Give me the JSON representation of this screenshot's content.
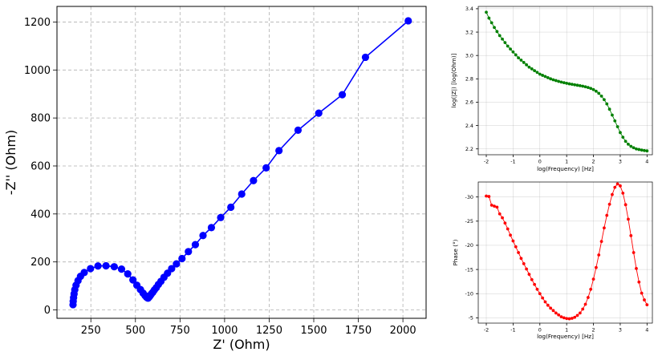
{
  "chart_data": [
    {
      "type": "line",
      "xlabel": "Z' (Ohm)",
      "ylabel": "-Z'' (Ohm)",
      "xlim": [
        60,
        2130
      ],
      "ylim": [
        -35,
        1265
      ],
      "xticks": [
        250,
        500,
        750,
        1000,
        1250,
        1500,
        1750,
        2000
      ],
      "yticks": [
        0,
        200,
        400,
        600,
        800,
        1000,
        1200
      ],
      "grid": true,
      "marker": "circle",
      "series": [
        {
          "color": "#0000ff",
          "x": [
            2030,
            1790,
            1660,
            1528,
            1412,
            1305,
            1233,
            1162,
            1096,
            1035,
            978,
            926,
            879,
            836,
            797,
            761,
            730,
            703,
            680,
            660,
            643,
            629,
            617,
            606,
            597,
            589,
            583,
            578,
            574,
            571,
            568,
            562,
            554,
            543,
            528,
            508,
            486,
            457,
            422,
            381,
            335,
            290,
            248,
            213,
            192,
            178,
            167,
            160,
            156,
            153,
            151,
            150
          ],
          "y": [
            1205,
            1053,
            897,
            820,
            749,
            664,
            592,
            539,
            483,
            428,
            385,
            343,
            310,
            272,
            243,
            214,
            192,
            172,
            153,
            136,
            119,
            106,
            93,
            83,
            73,
            66,
            60,
            55,
            52,
            49,
            50,
            53,
            60,
            70,
            85,
            103,
            125,
            150,
            170,
            180,
            184,
            183,
            172,
            156,
            140,
            122,
            103,
            84,
            67,
            51,
            36,
            22
          ]
        }
      ]
    },
    {
      "type": "line",
      "xlabel": "log(Frequency) [Hz]",
      "ylabel": "log(|Z|) [log(Ohm)]",
      "xlim": [
        -2.3,
        4.2
      ],
      "ylim": [
        2.15,
        3.42
      ],
      "xticks": [
        -2,
        -1,
        0,
        1,
        2,
        3,
        4
      ],
      "yticks": [
        2.2,
        2.4,
        2.6,
        2.8,
        3.0,
        3.2,
        3.4
      ],
      "grid": true,
      "marker": "circle",
      "series": [
        {
          "color": "#008000",
          "x": [
            -2.0,
            -1.9,
            -1.8,
            -1.7,
            -1.6,
            -1.5,
            -1.4,
            -1.3,
            -1.2,
            -1.1,
            -1.0,
            -0.9,
            -0.8,
            -0.7,
            -0.6,
            -0.5,
            -0.4,
            -0.3,
            -0.2,
            -0.1,
            0.0,
            0.1,
            0.2,
            0.3,
            0.4,
            0.5,
            0.6,
            0.7,
            0.8,
            0.9,
            1.0,
            1.1,
            1.2,
            1.3,
            1.4,
            1.5,
            1.6,
            1.7,
            1.8,
            1.9,
            2.0,
            2.1,
            2.2,
            2.3,
            2.4,
            2.5,
            2.6,
            2.7,
            2.8,
            2.9,
            3.0,
            3.1,
            3.2,
            3.3,
            3.4,
            3.5,
            3.6,
            3.7,
            3.8,
            3.9,
            4.0
          ],
          "y": [
            3.37,
            3.32,
            3.28,
            3.24,
            3.205,
            3.17,
            3.14,
            3.11,
            3.08,
            3.055,
            3.03,
            3.005,
            2.98,
            2.96,
            2.94,
            2.92,
            2.9,
            2.885,
            2.87,
            2.855,
            2.84,
            2.83,
            2.82,
            2.81,
            2.8,
            2.792,
            2.785,
            2.778,
            2.772,
            2.767,
            2.762,
            2.757,
            2.753,
            2.749,
            2.745,
            2.741,
            2.737,
            2.732,
            2.726,
            2.718,
            2.708,
            2.694,
            2.676,
            2.652,
            2.622,
            2.585,
            2.54,
            2.49,
            2.44,
            2.39,
            2.34,
            2.3,
            2.265,
            2.24,
            2.222,
            2.21,
            2.2,
            2.195,
            2.19,
            2.186,
            2.183
          ]
        }
      ]
    },
    {
      "type": "line",
      "xlabel": "log(Frequency) [Hz]",
      "ylabel": "Phase (°)",
      "xlim": [
        -2.3,
        4.2
      ],
      "ylim": [
        -3.9,
        -33.1
      ],
      "xticks": [
        -2,
        -1,
        0,
        1,
        2,
        3,
        4
      ],
      "yticks": [
        -5,
        -10,
        -15,
        -20,
        -25,
        -30
      ],
      "grid": true,
      "marker": "circle",
      "series": [
        {
          "color": "#ff0000",
          "x": [
            -2.0,
            -1.9,
            -1.8,
            -1.7,
            -1.6,
            -1.5,
            -1.4,
            -1.3,
            -1.2,
            -1.1,
            -1.0,
            -0.9,
            -0.8,
            -0.7,
            -0.6,
            -0.5,
            -0.4,
            -0.3,
            -0.2,
            -0.1,
            0.0,
            0.1,
            0.2,
            0.3,
            0.4,
            0.5,
            0.6,
            0.7,
            0.8,
            0.9,
            1.0,
            1.1,
            1.2,
            1.3,
            1.4,
            1.5,
            1.6,
            1.7,
            1.8,
            1.9,
            2.0,
            2.1,
            2.2,
            2.3,
            2.4,
            2.5,
            2.6,
            2.7,
            2.8,
            2.9,
            3.0,
            3.1,
            3.2,
            3.3,
            3.4,
            3.5,
            3.6,
            3.7,
            3.8,
            3.9,
            4.0
          ],
          "y": [
            -30.2,
            -30.1,
            -28.3,
            -28.1,
            -27.9,
            -26.5,
            -25.7,
            -24.6,
            -23.4,
            -22.1,
            -20.9,
            -19.7,
            -18.5,
            -17.3,
            -16.2,
            -15.1,
            -14.0,
            -12.9,
            -11.9,
            -10.9,
            -10.0,
            -9.1,
            -8.3,
            -7.6,
            -7.0,
            -6.5,
            -6.0,
            -5.6,
            -5.2,
            -5.0,
            -4.85,
            -4.8,
            -4.9,
            -5.1,
            -5.5,
            -6.0,
            -6.8,
            -7.8,
            -9.2,
            -10.9,
            -13.0,
            -15.4,
            -18.0,
            -20.8,
            -23.6,
            -26.2,
            -28.5,
            -30.5,
            -32.0,
            -32.7,
            -32.3,
            -30.8,
            -28.4,
            -25.4,
            -22.0,
            -18.5,
            -15.2,
            -12.4,
            -10.1,
            -8.7,
            -7.7
          ]
        }
      ]
    }
  ]
}
